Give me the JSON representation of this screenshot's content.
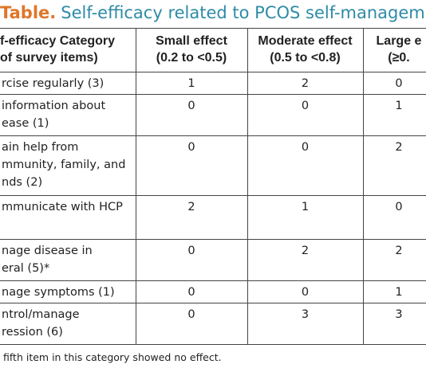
{
  "title": {
    "label": "Table.",
    "text": "Self-efficacy related to PCOS self-managemen"
  },
  "table": {
    "header": [
      [
        "f-efficacy Category",
        "of survey items)"
      ],
      [
        "Small effect",
        "(0.2 to <0.5)"
      ],
      [
        "Moderate effect",
        "(0.5 to <0.8)"
      ],
      [
        "Large e",
        "(≥0."
      ]
    ],
    "rows": [
      [
        [
          "rcise regularly (3)"
        ],
        1,
        2,
        0
      ],
      [
        [
          "information about",
          "ease (1)"
        ],
        0,
        0,
        1
      ],
      [
        [
          "ain help from",
          "mmunity, family, and",
          "nds (2)"
        ],
        0,
        0,
        2
      ],
      [
        [
          "mmunicate with HCP"
        ],
        2,
        1,
        0
      ],
      [
        [
          "nage disease in",
          "eral (5)*"
        ],
        0,
        2,
        2
      ],
      [
        [
          "nage symptoms (1)"
        ],
        0,
        0,
        1
      ],
      [
        [
          "ntrol/manage",
          "ression (6)"
        ],
        0,
        3,
        3
      ]
    ]
  },
  "footnote": "fifth item in this category showed no effect."
}
